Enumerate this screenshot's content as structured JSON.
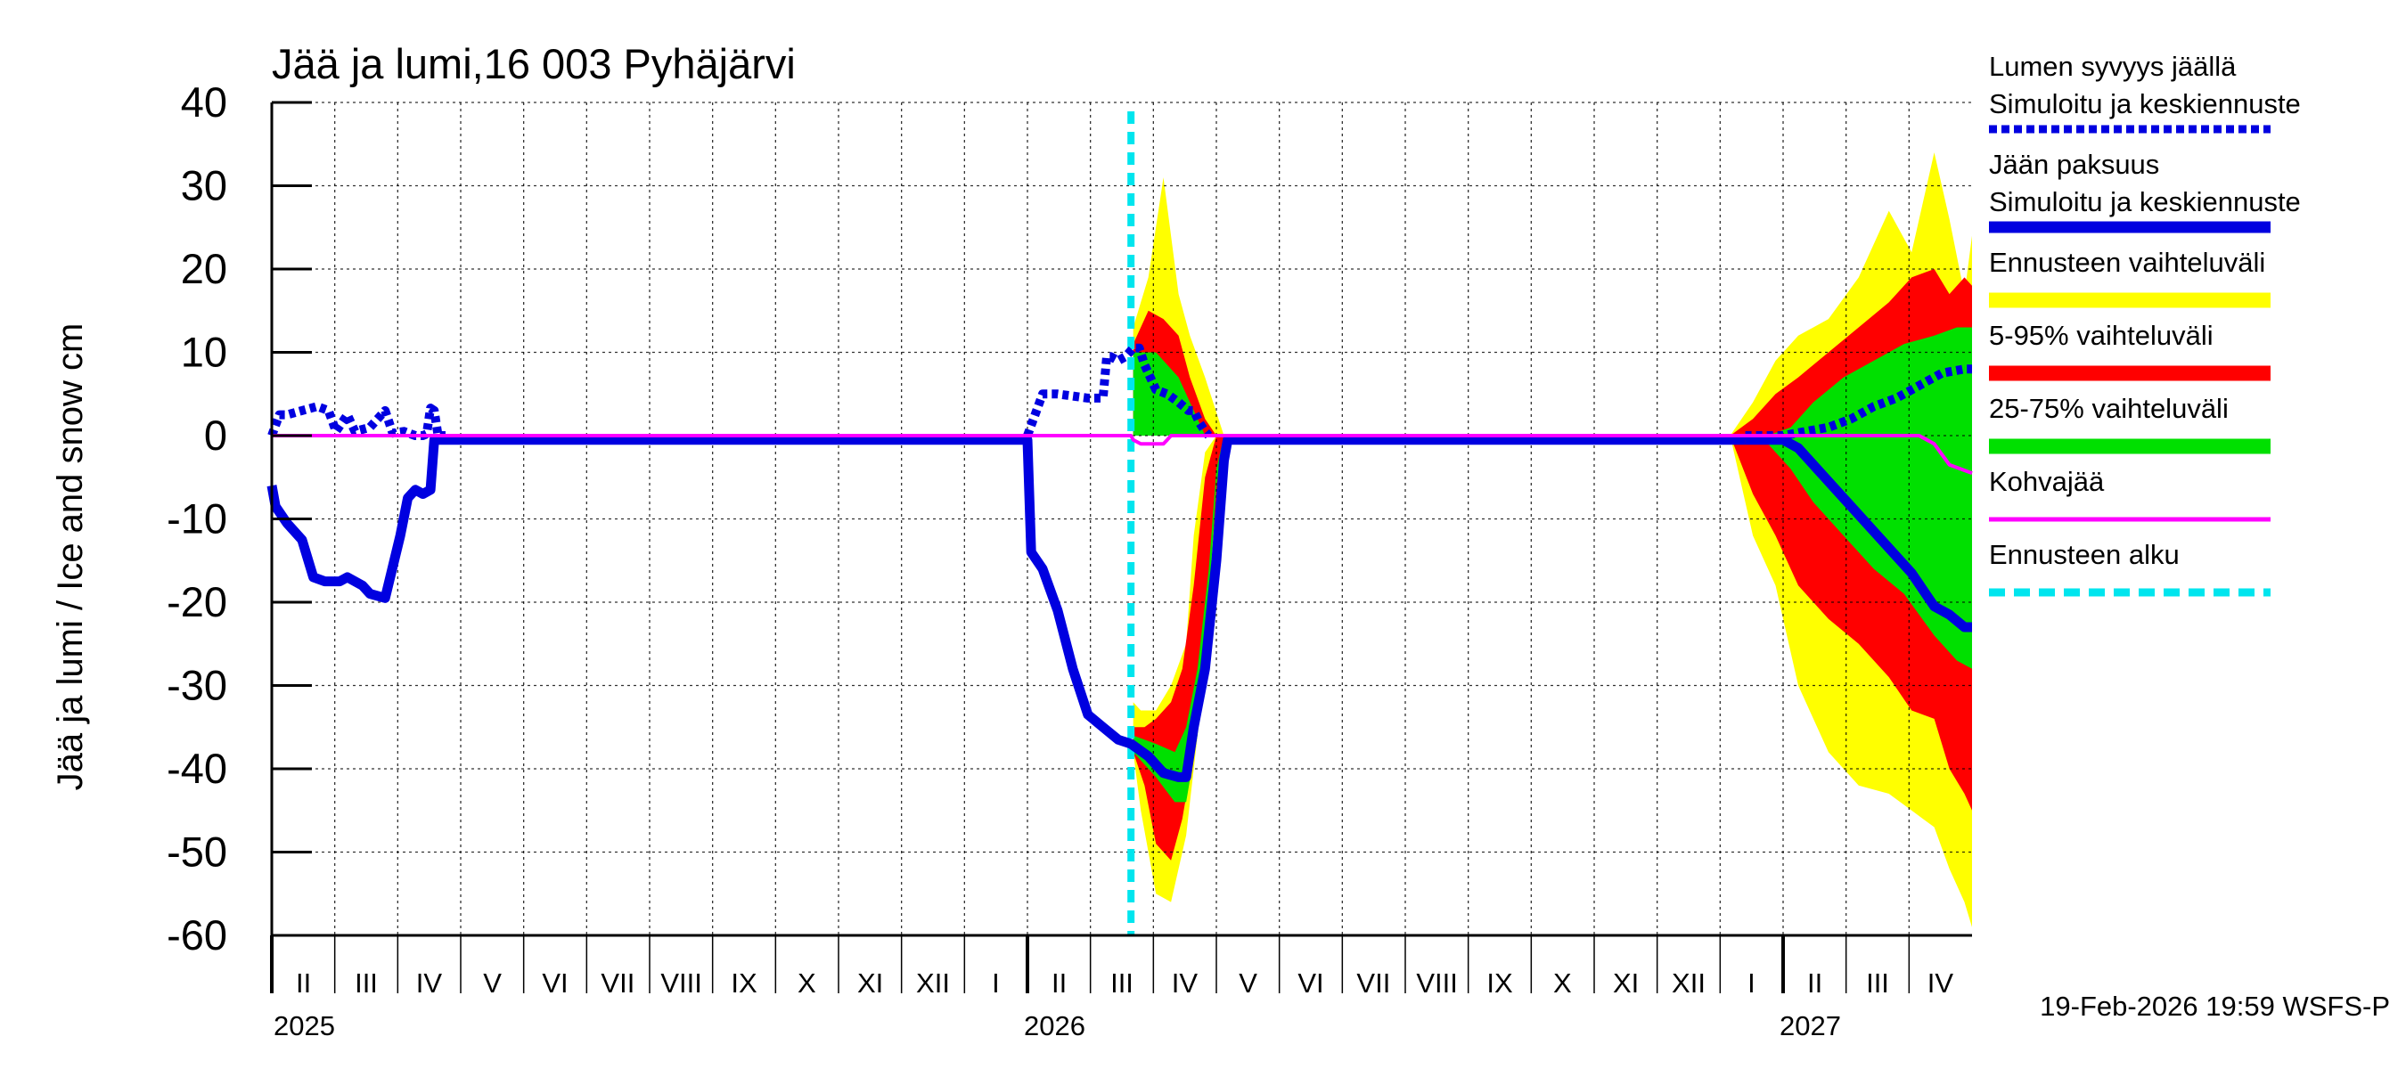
{
  "chart_data": {
    "type": "line",
    "title": "Jää ja lumi,16 003 Pyhäjärvi",
    "ylabel": "Jää ja lumi / Ice and snow    cm",
    "ylim": [
      -60,
      40
    ],
    "yticks": [
      40,
      30,
      20,
      10,
      0,
      -10,
      -20,
      -30,
      -40,
      -50,
      -60
    ],
    "xlim": [
      2025.0,
      2027.25
    ],
    "grid": true,
    "months": [
      {
        "label": "II",
        "t": 2025.042
      },
      {
        "label": "III",
        "t": 2025.125
      },
      {
        "label": "IV",
        "t": 2025.208
      },
      {
        "label": "V",
        "t": 2025.292
      },
      {
        "label": "VI",
        "t": 2025.375
      },
      {
        "label": "VII",
        "t": 2025.458
      },
      {
        "label": "VIII",
        "t": 2025.542
      },
      {
        "label": "IX",
        "t": 2025.625
      },
      {
        "label": "X",
        "t": 2025.708
      },
      {
        "label": "XI",
        "t": 2025.792
      },
      {
        "label": "XII",
        "t": 2025.875
      },
      {
        "label": "I",
        "t": 2025.958
      },
      {
        "label": "II",
        "t": 2026.042
      },
      {
        "label": "III",
        "t": 2026.125
      },
      {
        "label": "IV",
        "t": 2026.208
      },
      {
        "label": "V",
        "t": 2026.292
      },
      {
        "label": "VI",
        "t": 2026.375
      },
      {
        "label": "VII",
        "t": 2026.458
      },
      {
        "label": "VIII",
        "t": 2026.542
      },
      {
        "label": "IX",
        "t": 2026.625
      },
      {
        "label": "X",
        "t": 2026.708
      },
      {
        "label": "XI",
        "t": 2026.792
      },
      {
        "label": "XII",
        "t": 2026.875
      },
      {
        "label": "I",
        "t": 2026.958
      },
      {
        "label": "II",
        "t": 2027.042
      },
      {
        "label": "III",
        "t": 2027.125
      },
      {
        "label": "IV",
        "t": 2027.208
      }
    ],
    "year_labels": [
      {
        "label": "2025",
        "t": 2025.0
      },
      {
        "label": "2026",
        "t": 2026.0
      },
      {
        "label": "2027",
        "t": 2027.0
      }
    ],
    "forecast_start": 2026.137,
    "legend": [
      {
        "line1": "Lumen syvyys jäällä",
        "line2": "Simuloitu ja keskiennuste",
        "color": "#0000e0",
        "style": "dotted"
      },
      {
        "line1": "Jään paksuus",
        "line2": "Simuloitu ja keskiennuste",
        "color": "#0000e0",
        "style": "solid"
      },
      {
        "line1": "Ennusteen vaihteluväli",
        "line2": "",
        "color": "#ffff00",
        "style": "band"
      },
      {
        "line1": "5-95% vaihteluväli",
        "line2": "",
        "color": "#ff0000",
        "style": "band"
      },
      {
        "line1": "25-75% vaihteluväli",
        "line2": "",
        "color": "#00e000",
        "style": "band"
      },
      {
        "line1": "Kohvajää",
        "line2": "",
        "color": "#ff00ff",
        "style": "thin"
      },
      {
        "line1": "Ennusteen alku",
        "line2": "",
        "color": "#00e5ee",
        "style": "dashed"
      }
    ],
    "series": [
      {
        "name": "Lumen syvyys jäällä (simuloitu)",
        "color": "#0000e0",
        "style": "dotted",
        "x": [
          2025.0,
          2025.01,
          2025.02,
          2025.04,
          2025.06,
          2025.075,
          2025.085,
          2025.1,
          2025.11,
          2025.13,
          2025.15,
          2025.16,
          2025.175,
          2025.19,
          2025.2,
          2025.205,
          2025.21,
          2025.215,
          2025.22,
          2025.23
        ],
        "y": [
          0,
          2.5,
          2.5,
          3.0,
          3.5,
          3.0,
          0.5,
          2.5,
          0.5,
          1.0,
          3.0,
          0.3,
          0.5,
          0.0,
          0.0,
          0.2,
          3.3,
          3.0,
          0.0,
          0.0
        ]
      },
      {
        "name": "Lumen syvyys jäällä (ennuste)",
        "color": "#0000e0",
        "style": "dotted",
        "x": [
          2026.0,
          2026.02,
          2026.04,
          2026.08,
          2026.1,
          2026.105,
          2026.11,
          2026.12,
          2026.13,
          2026.14,
          2026.148,
          2026.155,
          2026.17,
          2026.185,
          2026.2,
          2026.213,
          2026.22,
          2026.228,
          2026.235,
          2026.24
        ],
        "y": [
          0,
          5,
          5,
          4.5,
          4.5,
          9.5,
          9.5,
          9.0,
          9.5,
          10.5,
          10.5,
          8.5,
          5.5,
          5.0,
          4.0,
          3.0,
          3.0,
          1.5,
          0.5,
          0
        ]
      },
      {
        "name": "Jään paksuus (simuloitu)",
        "color": "#0000e0",
        "style": "solid",
        "x": [
          2025.0,
          2025.005,
          2025.02,
          2025.04,
          2025.055,
          2025.07,
          2025.09,
          2025.1,
          2025.12,
          2025.13,
          2025.15,
          2025.17,
          2025.18,
          2025.19,
          2025.2,
          2025.21,
          2025.215,
          2025.22,
          2025.225,
          2025.3,
          2025.5,
          2025.7,
          2025.9,
          2025.98
        ],
        "y": [
          -6,
          -8.5,
          -10.5,
          -12.5,
          -17,
          -17.5,
          -17.5,
          -17,
          -18,
          -19,
          -19.5,
          -12,
          -7.5,
          -6.5,
          -7,
          -6.5,
          -0.5,
          -0.5,
          -0.5,
          -0.5,
          -0.5,
          -0.5,
          -0.5,
          -0.5
        ]
      },
      {
        "name": "Jään paksuus (ennuste)",
        "color": "#0000e0",
        "style": "solid",
        "x": [
          2025.98,
          2026.0,
          2026.005,
          2026.02,
          2026.04,
          2026.06,
          2026.08,
          2026.1,
          2026.12,
          2026.137,
          2026.16,
          2026.18,
          2026.2,
          2026.21,
          2026.22,
          2026.235,
          2026.25,
          2026.26,
          2026.265,
          2026.3,
          2026.4,
          2026.6,
          2026.8,
          2026.95
        ],
        "y": [
          -0.5,
          -0.5,
          -14,
          -16,
          -21,
          -28,
          -33.5,
          -35,
          -36.5,
          -37,
          -38.5,
          -40.5,
          -41,
          -41,
          -35,
          -28,
          -15,
          -3,
          -0.5,
          -0.5,
          -0.5,
          -0.5,
          -0.5,
          -0.5
        ]
      },
      {
        "name": "Lumen syvyys (keskiennuste 2027)",
        "color": "#0000e0",
        "style": "dotted",
        "x": [
          2026.95,
          2027.0,
          2027.03,
          2027.06,
          2027.09,
          2027.12,
          2027.15,
          2027.18,
          2027.21,
          2027.24,
          2027.25
        ],
        "y": [
          0,
          0,
          0.5,
          1,
          2,
          3.5,
          4.5,
          6,
          7.5,
          8,
          8
        ]
      },
      {
        "name": "Jään paksuus (keskiennuste 2027)",
        "color": "#0000e0",
        "style": "solid",
        "x": [
          2026.95,
          2027.0,
          2027.02,
          2027.05,
          2027.08,
          2027.11,
          2027.14,
          2027.17,
          2027.2,
          2027.22,
          2027.24,
          2027.25
        ],
        "y": [
          -0.5,
          -0.5,
          -1.5,
          -4.5,
          -7.5,
          -10.5,
          -13.5,
          -16.5,
          -20.5,
          -21.5,
          -23,
          -23
        ]
      },
      {
        "name": "Kohvajää",
        "color": "#ff00ff",
        "style": "thin",
        "x": [
          2025.0,
          2025.3,
          2025.6,
          2025.9,
          2026.137,
          2026.14,
          2026.15,
          2026.18,
          2026.185,
          2026.19,
          2026.5,
          2026.8,
          2027.0,
          2027.08,
          2027.18,
          2027.2,
          2027.22,
          2027.25
        ],
        "y": [
          0,
          0,
          0,
          0,
          0,
          -0.5,
          -1,
          -1,
          -0.5,
          0,
          0,
          0,
          0,
          0,
          0,
          -1,
          -3.5,
          -4.5
        ]
      }
    ],
    "bands": [
      {
        "name": "Ennusteen vaihteluväli",
        "color": "#ffff00",
        "x": [
          2026.14,
          2026.16,
          2026.18,
          2026.2,
          2026.215,
          2026.235,
          2026.26,
          2026.27
        ],
        "upper": [
          13,
          19,
          31,
          17,
          12,
          7,
          0,
          0
        ]
      },
      {
        "name": "Ennusteen vaihteluväli",
        "color": "#ffff00",
        "x": [
          2026.14,
          2026.15,
          2026.17,
          2026.19,
          2026.21,
          2026.22,
          2026.235,
          2026.25,
          2026.26,
          2026.265
        ],
        "upper": [
          -32,
          -33,
          -33,
          -30,
          -25,
          -12,
          -2,
          0,
          0,
          0
        ],
        "lower": [
          -38,
          -45,
          -55,
          -56,
          -48,
          -40,
          -28,
          -12,
          -2,
          0
        ]
      },
      {
        "name": "5-95% vaihteluväli",
        "color": "#ff0000",
        "x": [
          2026.14,
          2026.16,
          2026.18,
          2026.2,
          2026.215,
          2026.235,
          2026.25
        ],
        "upper": [
          11,
          15,
          14,
          12,
          7,
          2,
          0
        ]
      },
      {
        "name": "5-95% vaihteluväli",
        "color": "#ff0000",
        "x": [
          2026.14,
          2026.155,
          2026.17,
          2026.19,
          2026.205,
          2026.22,
          2026.235,
          2026.25,
          2026.26,
          2026.265
        ],
        "upper": [
          -35,
          -35,
          -34,
          -32,
          -28,
          -18,
          -5,
          0,
          0,
          0
        ],
        "lower": [
          -38,
          -42,
          -49,
          -51,
          -46,
          -38,
          -22,
          -8,
          -1,
          0
        ]
      },
      {
        "name": "25-75% vaihteluväli",
        "color": "#00e000",
        "x": [
          2026.14,
          2026.17,
          2026.2,
          2026.22,
          2026.235
        ],
        "upper": [
          10,
          10,
          7,
          3,
          0
        ]
      },
      {
        "name": "25-75% vaihteluväli",
        "color": "#00e000",
        "x": [
          2026.14,
          2026.17,
          2026.195,
          2026.21,
          2026.225,
          2026.24,
          2026.25,
          2026.26
        ],
        "upper": [
          -36,
          -37,
          -38,
          -35,
          -28,
          -16,
          -4,
          0
        ],
        "lower": [
          -38,
          -41,
          -44,
          -44,
          -36,
          -20,
          -6,
          0
        ]
      },
      {
        "name": "Ennusteen vaihteluväli",
        "color": "#ffff00",
        "x": [
          2026.93,
          2026.96,
          2026.99,
          2027.02,
          2027.06,
          2027.1,
          2027.14,
          2027.17,
          2027.2,
          2027.22,
          2027.24,
          2027.25
        ],
        "upper": [
          0,
          4,
          9,
          12,
          14,
          19,
          27,
          22,
          34,
          26,
          17,
          24
        ],
        "lower": [
          0,
          -12,
          -18,
          -30,
          -38,
          -42,
          -43,
          -45,
          -47,
          -52,
          -56,
          -59
        ]
      },
      {
        "name": "5-95% vaihteluväli",
        "color": "#ff0000",
        "x": [
          2026.93,
          2026.96,
          2026.99,
          2027.02,
          2027.06,
          2027.1,
          2027.14,
          2027.17,
          2027.2,
          2027.22,
          2027.24,
          2027.25
        ],
        "upper": [
          0,
          2,
          5,
          7,
          10,
          13,
          16,
          19,
          20,
          17,
          19,
          18
        ],
        "lower": [
          0,
          -7,
          -12,
          -18,
          -22,
          -25,
          -29,
          -33,
          -34,
          -40,
          -43,
          -45
        ]
      },
      {
        "name": "25-75% vaihteluväli",
        "color": "#00e000",
        "x": [
          2026.95,
          2026.98,
          2027.01,
          2027.04,
          2027.08,
          2027.12,
          2027.16,
          2027.2,
          2027.23,
          2027.25
        ],
        "upper": [
          0,
          0,
          1,
          4,
          7,
          9,
          11,
          12,
          13,
          13
        ],
        "lower": [
          0,
          -1,
          -4,
          -8,
          -12,
          -16,
          -19,
          -24,
          -27,
          -28
        ]
      }
    ]
  },
  "footer": {
    "timestamp": "19-Feb-2026 19:59 WSFS-P"
  }
}
